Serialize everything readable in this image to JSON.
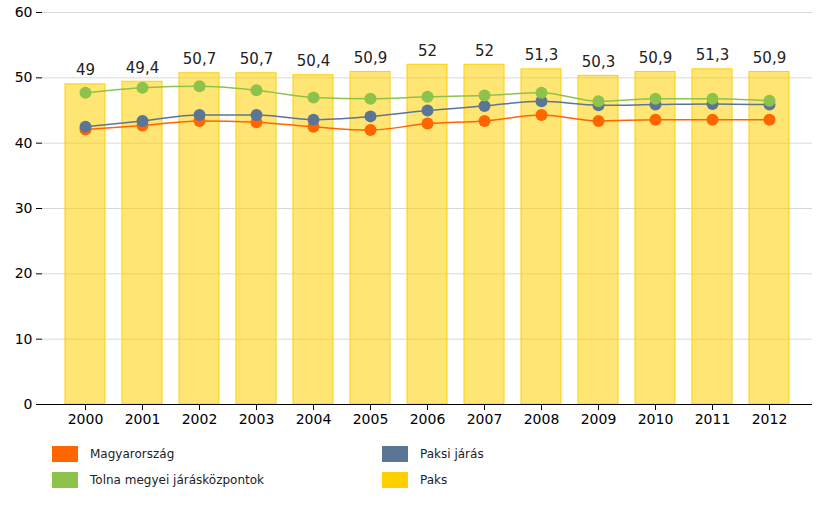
{
  "chart_data": {
    "type": "bar",
    "categories": [
      "2000",
      "2001",
      "2002",
      "2003",
      "2004",
      "2005",
      "2006",
      "2007",
      "2008",
      "2009",
      "2010",
      "2011",
      "2012"
    ],
    "series": [
      {
        "name": "Magyarország",
        "type": "line",
        "marker": "circle",
        "color": "#ff6600",
        "values": [
          42.1,
          42.7,
          43.4,
          43.2,
          42.5,
          42.0,
          43.0,
          43.4,
          44.3,
          43.4,
          43.6,
          43.6,
          43.6
        ]
      },
      {
        "name": "Paksi járás",
        "type": "line",
        "marker": "circle",
        "color": "#5b7595",
        "values": [
          42.5,
          43.4,
          44.3,
          44.3,
          43.6,
          44.1,
          45.0,
          45.7,
          46.4,
          45.8,
          45.9,
          46.0,
          45.9
        ]
      },
      {
        "name": "Tolna megyei járásközpontok",
        "type": "line",
        "marker": "circle",
        "color": "#8dc34a",
        "values": [
          47.7,
          48.5,
          48.7,
          48.1,
          47.0,
          46.8,
          47.1,
          47.3,
          47.7,
          46.4,
          46.8,
          46.8,
          46.5
        ]
      },
      {
        "name": "Paks",
        "type": "bar",
        "color": "#ffd000",
        "values": [
          49,
          49.4,
          50.7,
          50.7,
          50.4,
          50.9,
          52,
          52,
          51.3,
          50.3,
          50.9,
          51.3,
          50.9
        ],
        "value_labels": [
          "49",
          "49,4",
          "50,7",
          "50,7",
          "50,4",
          "50,9",
          "52",
          "52",
          "51,3",
          "50,3",
          "50,9",
          "51,3",
          "50,9"
        ]
      }
    ],
    "ylim": [
      0,
      60
    ],
    "yticks": [
      0,
      10,
      20,
      30,
      40,
      50,
      60
    ],
    "grid": true,
    "data_labels": true
  }
}
